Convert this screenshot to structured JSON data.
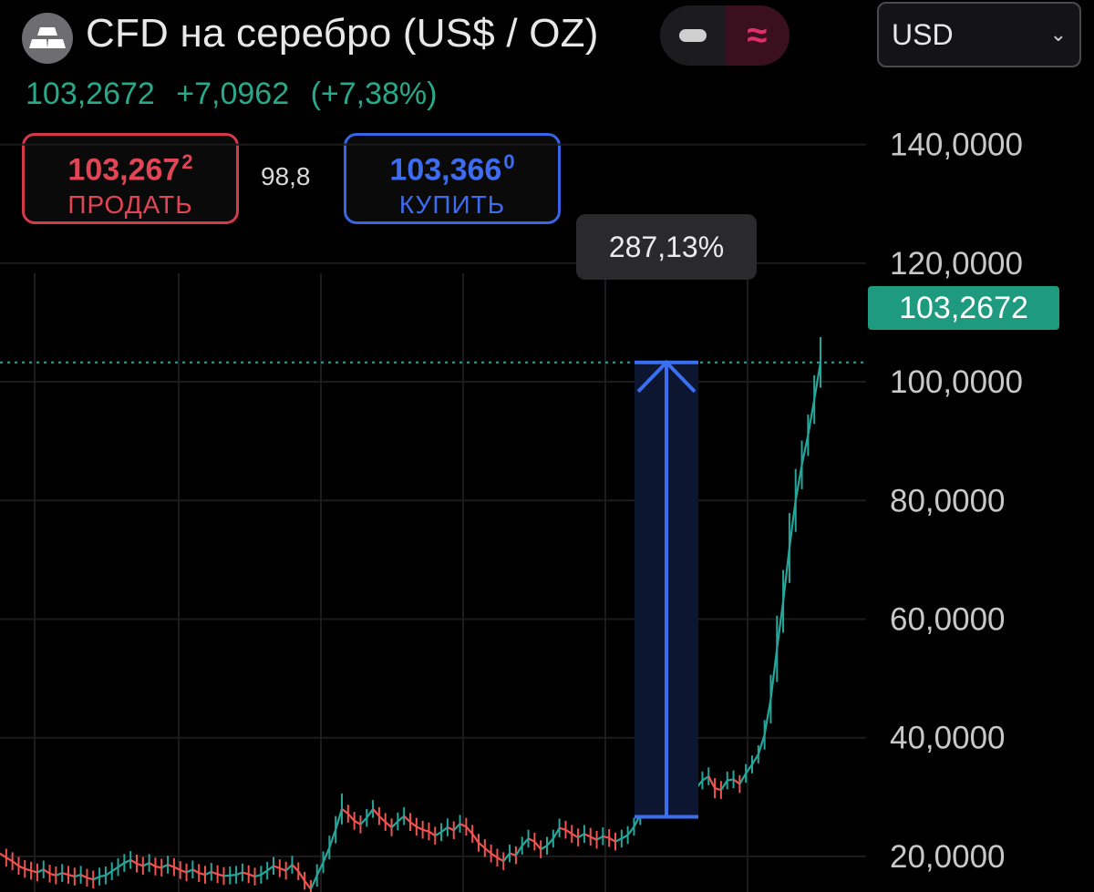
{
  "header": {
    "logo_icon": "silver-bars-icon",
    "title": "CFD на серебро (US$ / OZ)",
    "mode_minus_icon": "minus-icon",
    "mode_wave_icon": "approx-wave-icon",
    "mode_wave_glyph": "≈",
    "currency": "USD",
    "currency_chevron": "⌄"
  },
  "quote": {
    "last": "103,2672",
    "change": "+7,0962",
    "change_pct": "(+7,38%)",
    "color": "#27a98a"
  },
  "trade": {
    "sell": {
      "price": "103,267",
      "price_sup": "2",
      "label": "ПРОДАТЬ",
      "color": "#e24656"
    },
    "spread": "98,8",
    "buy": {
      "price": "103,366",
      "price_sup": "0",
      "label": "КУПИТЬ",
      "color": "#3e6cf0"
    }
  },
  "chart_data": {
    "type": "line",
    "style": "candles",
    "y_axis_ticks": [
      "20,0000",
      "40,0000",
      "60,0000",
      "80,0000",
      "100,0000",
      "120,0000",
      "140,0000"
    ],
    "ylim": [
      14,
      149
    ],
    "grid": true,
    "last_price": 103.2672,
    "last_price_label": "103,2672",
    "series": [
      {
        "values": [
          20.5,
          19.8,
          19.2,
          18.4,
          17.9,
          17.6,
          17.3,
          17.8,
          17.1,
          16.8,
          17.2,
          16.9,
          16.6,
          16.9,
          16.4,
          16.1,
          16.6,
          16.8,
          17.5,
          18.2,
          18.9,
          19.4,
          18.8,
          18.4,
          18.9,
          18.3,
          18.1,
          18.6,
          18.2,
          17.7,
          17.3,
          17.8,
          17.2,
          16.9,
          17.4,
          17.0,
          16.7,
          16.8,
          16.9,
          17.3,
          17.0,
          16.6,
          16.9,
          17.6,
          18.4,
          18.0,
          17.6,
          18.6,
          17.5,
          15.9,
          14.5,
          16.8,
          19.0,
          21.5,
          24.5,
          28.0,
          27.2,
          26.0,
          25.4,
          26.5,
          28.0,
          26.8,
          25.8,
          24.9,
          25.9,
          26.8,
          25.8,
          25.0,
          24.5,
          24.2,
          23.5,
          24.1,
          24.9,
          24.4,
          25.5,
          25.0,
          23.8,
          22.3,
          21.4,
          20.5,
          19.8,
          19.2,
          20.5,
          20.2,
          21.8,
          23.0,
          22.5,
          21.2,
          21.8,
          23.0,
          24.8,
          24.5,
          23.8,
          23.2,
          23.8,
          23.3,
          22.8,
          23.4,
          23.1,
          22.5,
          23.0,
          23.6,
          25.0,
          27.0,
          28.5,
          30.3,
          30.0,
          29.2,
          30.6,
          31.8,
          31.0,
          30.5,
          31.5,
          32.8,
          33.5,
          31.5,
          31.2,
          32.8,
          33.0,
          32.2,
          34.0,
          35.5,
          37.2,
          40.5,
          46.5,
          55.0,
          63.0,
          72.0,
          80.0,
          86.0,
          91.0,
          97.0,
          103.27
        ],
        "color_up": "#26a69a",
        "color_down": "#ef5350"
      }
    ],
    "measure": {
      "from": 26.67,
      "to": 103.27,
      "label": "287,13%"
    }
  }
}
